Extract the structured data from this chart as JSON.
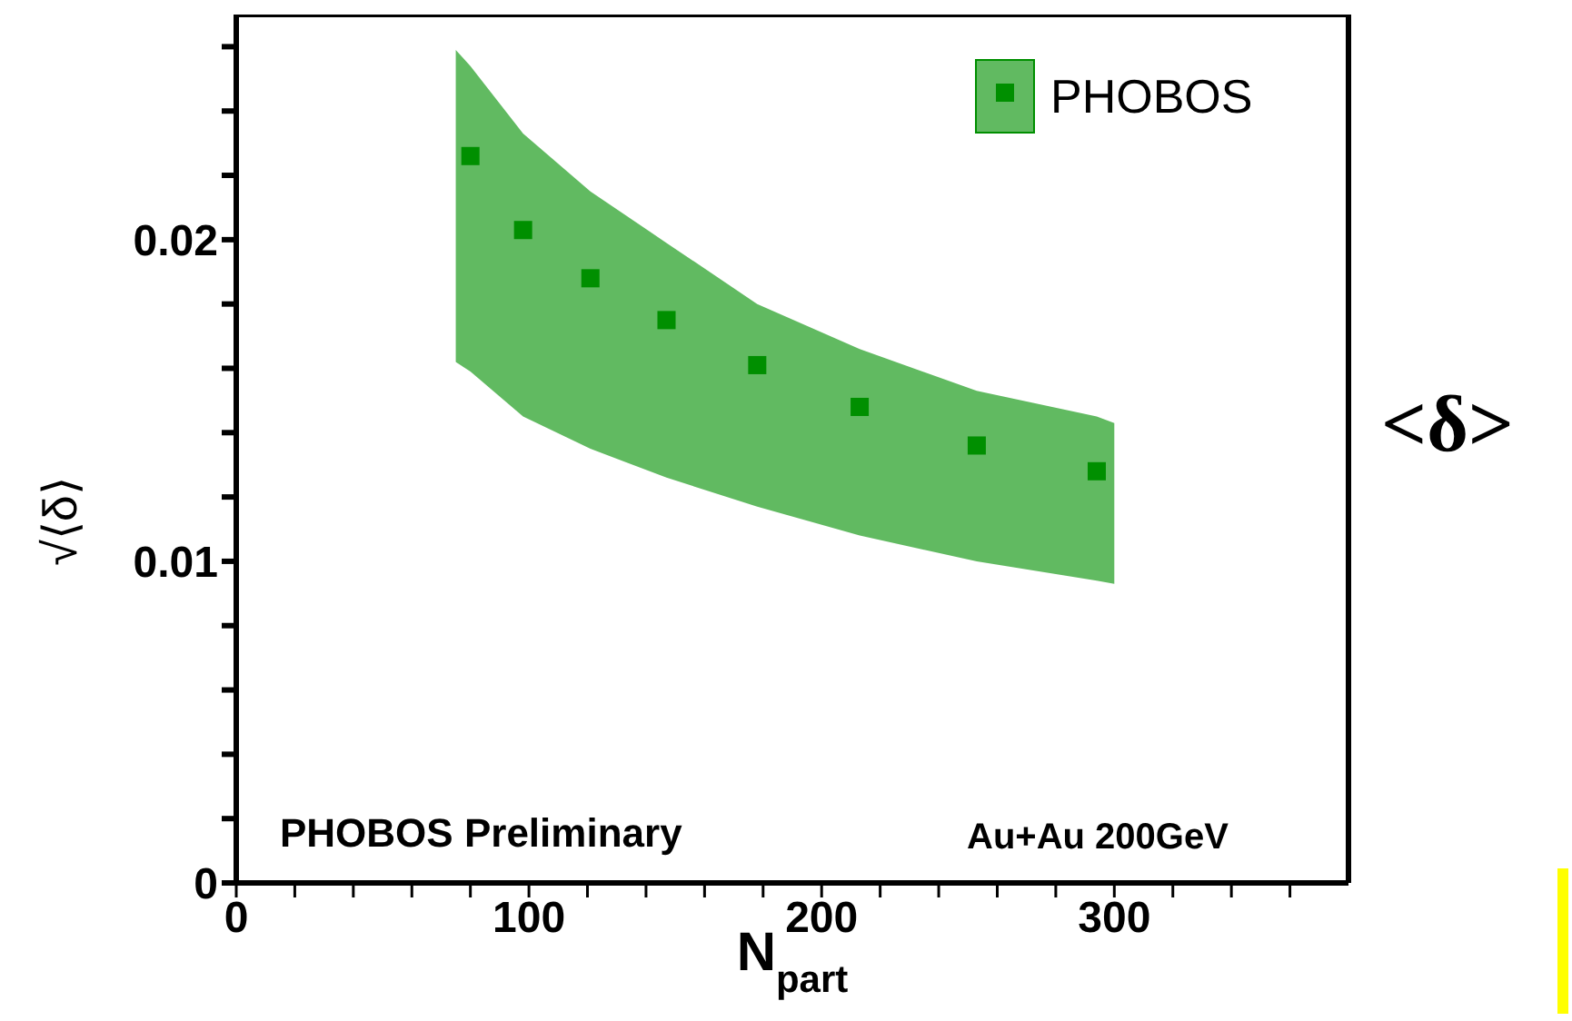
{
  "chart_data": {
    "type": "scatter",
    "xlabel": "N$_{part}$",
    "ylabel": "√⟨δ⟩",
    "x": [
      75,
      80,
      98,
      121,
      147,
      178,
      213,
      253,
      294,
      300
    ],
    "series": [
      {
        "name": "PHOBOS",
        "color": "#008f00",
        "marker": "square",
        "values": [
          null,
          0.0226,
          0.0203,
          0.0188,
          0.0175,
          0.0161,
          0.0148,
          0.0136,
          0.0128,
          null
        ],
        "lower": [
          0.0162,
          0.0159,
          0.0145,
          0.0135,
          0.0126,
          0.0117,
          0.0108,
          0.01,
          0.0094,
          0.0093
        ],
        "upper": [
          0.0259,
          0.0254,
          0.0233,
          0.0215,
          0.0199,
          0.018,
          0.0166,
          0.0153,
          0.0145,
          0.0143
        ]
      }
    ],
    "xlim": [
      0,
      380
    ],
    "ylim": [
      0,
      0.027
    ],
    "xticks": [
      0,
      {
        "value": 20,
        "label": null
      },
      {
        "value": 40,
        "label": null
      },
      {
        "value": 60,
        "label": null
      },
      {
        "value": 80,
        "label": null
      },
      100,
      {
        "value": 120,
        "label": null
      },
      {
        "value": 140,
        "label": null
      },
      {
        "value": 160,
        "label": null
      },
      {
        "value": 180,
        "label": null
      },
      200,
      {
        "value": 220,
        "label": null
      },
      {
        "value": 240,
        "label": null
      },
      {
        "value": 260,
        "label": null
      },
      {
        "value": 280,
        "label": null
      },
      300,
      {
        "value": 320,
        "label": null
      },
      {
        "value": 340,
        "label": null
      },
      {
        "value": 360,
        "label": null
      }
    ],
    "yticks": [
      0,
      {
        "value": 0.002,
        "label": null
      },
      {
        "value": 0.004,
        "label": null
      },
      {
        "value": 0.006,
        "label": null
      },
      {
        "value": 0.008,
        "label": null
      },
      0.01,
      {
        "value": 0.012,
        "label": null
      },
      {
        "value": 0.014,
        "label": null
      },
      {
        "value": 0.016,
        "label": null
      },
      {
        "value": 0.018,
        "label": null
      },
      0.02,
      {
        "value": 0.022,
        "label": null
      },
      {
        "value": 0.024,
        "label": null
      },
      {
        "value": 0.026,
        "label": null
      }
    ],
    "grid": false,
    "legend": "top right",
    "annotations": [
      "PHOBOS Preliminary",
      "Au+Au 200GeV",
      "<δ>"
    ]
  }
}
